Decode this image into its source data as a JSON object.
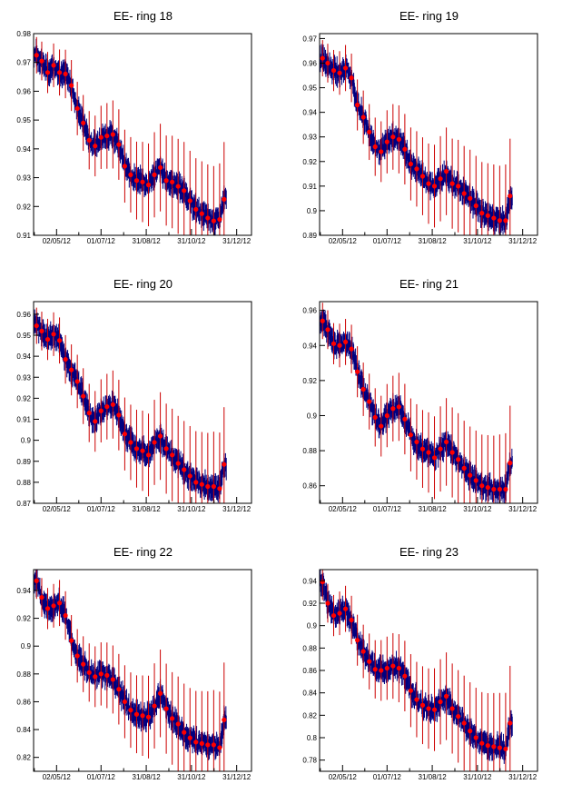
{
  "chart_data": [
    {
      "type": "scatter",
      "title": "EE- ring 18",
      "ylim": [
        0.91,
        0.98
      ],
      "yticks": [
        "0.91",
        "0.92",
        "0.93",
        "0.94",
        "0.95",
        "0.96",
        "0.97",
        "0.98"
      ],
      "xticks": [
        "02/05/12",
        "01/07/12",
        "31/08/12",
        "31/10/12",
        "31/12/12"
      ],
      "xlabel": "",
      "ylabel": "",
      "series": [
        {
          "x": [
            "2012-04-05",
            "2012-04-12",
            "2012-04-20",
            "2012-04-28",
            "2012-05-06",
            "2012-05-14",
            "2012-05-22",
            "2012-05-30",
            "2012-06-07",
            "2012-06-15",
            "2012-06-23",
            "2012-07-01",
            "2012-07-09",
            "2012-07-17",
            "2012-07-25",
            "2012-08-02",
            "2012-08-10",
            "2012-08-18",
            "2012-08-26",
            "2012-09-03",
            "2012-09-11",
            "2012-09-19",
            "2012-09-27",
            "2012-10-05",
            "2012-10-13",
            "2012-10-21",
            "2012-10-29",
            "2012-11-06",
            "2012-11-14",
            "2012-11-22",
            "2012-11-30",
            "2012-12-08",
            "2012-12-14"
          ],
          "y": [
            0.9725,
            0.9705,
            0.9665,
            0.969,
            0.9665,
            0.966,
            0.962,
            0.954,
            0.949,
            0.943,
            0.941,
            0.944,
            0.9445,
            0.945,
            0.9415,
            0.934,
            0.931,
            0.929,
            0.9285,
            0.9275,
            0.931,
            0.9335,
            0.929,
            0.9285,
            0.927,
            0.9255,
            0.922,
            0.919,
            0.9175,
            0.916,
            0.915,
            0.9155,
            0.9225
          ]
        }
      ]
    },
    {
      "type": "scatter",
      "title": "EE- ring 19",
      "ylim": [
        0.89,
        0.972
      ],
      "yticks": [
        "0.89",
        "0.9",
        "0.91",
        "0.92",
        "0.93",
        "0.94",
        "0.95",
        "0.96",
        "0.97"
      ],
      "xticks": [
        "02/05/12",
        "01/07/12",
        "31/08/12",
        "31/10/12",
        "31/12/12"
      ],
      "xlabel": "",
      "ylabel": "",
      "series": [
        {
          "x": [
            "2012-04-05",
            "2012-04-12",
            "2012-04-20",
            "2012-04-28",
            "2012-05-06",
            "2012-05-14",
            "2012-05-22",
            "2012-05-30",
            "2012-06-07",
            "2012-06-15",
            "2012-06-23",
            "2012-07-01",
            "2012-07-09",
            "2012-07-17",
            "2012-07-25",
            "2012-08-02",
            "2012-08-10",
            "2012-08-18",
            "2012-08-26",
            "2012-09-03",
            "2012-09-11",
            "2012-09-19",
            "2012-09-27",
            "2012-10-05",
            "2012-10-13",
            "2012-10-21",
            "2012-10-29",
            "2012-11-06",
            "2012-11-14",
            "2012-11-22",
            "2012-11-30",
            "2012-12-08",
            "2012-12-14"
          ],
          "y": [
            0.962,
            0.96,
            0.957,
            0.956,
            0.958,
            0.954,
            0.943,
            0.938,
            0.932,
            0.926,
            0.924,
            0.928,
            0.93,
            0.929,
            0.925,
            0.919,
            0.917,
            0.914,
            0.911,
            0.91,
            0.913,
            0.916,
            0.911,
            0.91,
            0.907,
            0.905,
            0.902,
            0.899,
            0.898,
            0.897,
            0.896,
            0.896,
            0.906
          ]
        }
      ]
    },
    {
      "type": "scatter",
      "title": "EE- ring 20",
      "ylim": [
        0.87,
        0.966
      ],
      "yticks": [
        "0.87",
        "0.88",
        "0.89",
        "0.9",
        "0.91",
        "0.92",
        "0.93",
        "0.94",
        "0.95",
        "0.96"
      ],
      "xticks": [
        "02/05/12",
        "01/07/12",
        "31/08/12",
        "31/10/12",
        "31/12/12"
      ],
      "xlabel": "",
      "ylabel": "",
      "series": [
        {
          "x": [
            "2012-04-05",
            "2012-04-12",
            "2012-04-20",
            "2012-04-28",
            "2012-05-06",
            "2012-05-14",
            "2012-05-22",
            "2012-05-30",
            "2012-06-07",
            "2012-06-15",
            "2012-06-23",
            "2012-07-01",
            "2012-07-09",
            "2012-07-17",
            "2012-07-25",
            "2012-08-02",
            "2012-08-10",
            "2012-08-18",
            "2012-08-26",
            "2012-09-03",
            "2012-09-11",
            "2012-09-19",
            "2012-09-27",
            "2012-10-05",
            "2012-10-13",
            "2012-10-21",
            "2012-10-29",
            "2012-11-06",
            "2012-11-14",
            "2012-11-22",
            "2012-11-30",
            "2012-12-08",
            "2012-12-14"
          ],
          "y": [
            0.9545,
            0.952,
            0.948,
            0.9505,
            0.9475,
            0.9385,
            0.9335,
            0.928,
            0.921,
            0.913,
            0.909,
            0.914,
            0.916,
            0.917,
            0.912,
            0.903,
            0.899,
            0.896,
            0.895,
            0.893,
            0.899,
            0.902,
            0.896,
            0.893,
            0.889,
            0.886,
            0.883,
            0.88,
            0.879,
            0.878,
            0.878,
            0.877,
            0.8885
          ]
        }
      ]
    },
    {
      "type": "scatter",
      "title": "EE- ring 21",
      "ylim": [
        0.85,
        0.965
      ],
      "yticks": [
        "0.86",
        "0.88",
        "0.9",
        "0.92",
        "0.94",
        "0.96"
      ],
      "xticks": [
        "02/05/12",
        "01/07/12",
        "31/08/12",
        "31/10/12",
        "31/12/12"
      ],
      "xlabel": "",
      "ylabel": "",
      "series": [
        {
          "x": [
            "2012-04-05",
            "2012-04-12",
            "2012-04-20",
            "2012-04-28",
            "2012-05-06",
            "2012-05-14",
            "2012-05-22",
            "2012-05-30",
            "2012-06-07",
            "2012-06-15",
            "2012-06-23",
            "2012-07-01",
            "2012-07-09",
            "2012-07-17",
            "2012-07-25",
            "2012-08-02",
            "2012-08-10",
            "2012-08-18",
            "2012-08-26",
            "2012-09-03",
            "2012-09-11",
            "2012-09-19",
            "2012-09-27",
            "2012-10-05",
            "2012-10-13",
            "2012-10-21",
            "2012-10-29",
            "2012-11-06",
            "2012-11-14",
            "2012-11-22",
            "2012-11-30",
            "2012-12-08",
            "2012-12-14"
          ],
          "y": [
            0.954,
            0.949,
            0.941,
            0.94,
            0.942,
            0.938,
            0.925,
            0.915,
            0.908,
            0.899,
            0.894,
            0.9,
            0.904,
            0.905,
            0.898,
            0.889,
            0.885,
            0.881,
            0.879,
            0.876,
            0.881,
            0.885,
            0.879,
            0.875,
            0.87,
            0.866,
            0.863,
            0.86,
            0.859,
            0.858,
            0.858,
            0.858,
            0.873
          ]
        }
      ]
    },
    {
      "type": "scatter",
      "title": "EE- ring 22",
      "ylim": [
        0.81,
        0.955
      ],
      "yticks": [
        "0.82",
        "0.84",
        "0.86",
        "0.88",
        "0.9",
        "0.92",
        "0.94"
      ],
      "xticks": [
        "02/05/12",
        "01/07/12",
        "31/08/12",
        "31/10/12",
        "31/12/12"
      ],
      "xlabel": "",
      "ylabel": "",
      "series": [
        {
          "x": [
            "2012-04-05",
            "2012-04-12",
            "2012-04-20",
            "2012-04-28",
            "2012-05-06",
            "2012-05-14",
            "2012-05-22",
            "2012-05-30",
            "2012-06-07",
            "2012-06-15",
            "2012-06-23",
            "2012-07-01",
            "2012-07-09",
            "2012-07-17",
            "2012-07-25",
            "2012-08-02",
            "2012-08-10",
            "2012-08-18",
            "2012-08-26",
            "2012-09-03",
            "2012-09-11",
            "2012-09-19",
            "2012-09-27",
            "2012-10-05",
            "2012-10-13",
            "2012-10-21",
            "2012-10-29",
            "2012-11-06",
            "2012-11-14",
            "2012-11-22",
            "2012-11-30",
            "2012-12-08",
            "2012-12-14"
          ],
          "y": [
            0.947,
            0.935,
            0.927,
            0.929,
            0.931,
            0.922,
            0.904,
            0.893,
            0.887,
            0.881,
            0.878,
            0.88,
            0.879,
            0.876,
            0.869,
            0.86,
            0.854,
            0.851,
            0.85,
            0.849,
            0.857,
            0.866,
            0.855,
            0.848,
            0.844,
            0.838,
            0.834,
            0.831,
            0.83,
            0.829,
            0.829,
            0.827,
            0.847
          ]
        }
      ]
    },
    {
      "type": "scatter",
      "title": "EE- ring 23",
      "ylim": [
        0.77,
        0.95
      ],
      "yticks": [
        "0.78",
        "0.8",
        "0.82",
        "0.84",
        "0.86",
        "0.88",
        "0.9",
        "0.92",
        "0.94"
      ],
      "xticks": [
        "02/05/12",
        "01/07/12",
        "31/08/12",
        "31/10/12",
        "31/12/12"
      ],
      "xlabel": "",
      "ylabel": "",
      "series": [
        {
          "x": [
            "2012-04-05",
            "2012-04-12",
            "2012-04-20",
            "2012-04-28",
            "2012-05-06",
            "2012-05-14",
            "2012-05-22",
            "2012-05-30",
            "2012-06-07",
            "2012-06-15",
            "2012-06-23",
            "2012-07-01",
            "2012-07-09",
            "2012-07-17",
            "2012-07-25",
            "2012-08-02",
            "2012-08-10",
            "2012-08-18",
            "2012-08-26",
            "2012-09-03",
            "2012-09-11",
            "2012-09-19",
            "2012-09-27",
            "2012-10-05",
            "2012-10-13",
            "2012-10-21",
            "2012-10-29",
            "2012-11-06",
            "2012-11-14",
            "2012-11-22",
            "2012-11-30",
            "2012-12-08",
            "2012-12-14"
          ],
          "y": [
            0.939,
            0.92,
            0.909,
            0.911,
            0.915,
            0.905,
            0.887,
            0.877,
            0.868,
            0.861,
            0.86,
            0.862,
            0.864,
            0.862,
            0.855,
            0.842,
            0.834,
            0.829,
            0.826,
            0.825,
            0.832,
            0.837,
            0.826,
            0.819,
            0.813,
            0.806,
            0.8,
            0.795,
            0.793,
            0.792,
            0.791,
            0.79,
            0.813
          ]
        }
      ]
    }
  ],
  "colors": {
    "points": "#ff0000",
    "errorbars": "#cc0000",
    "band": "#000080",
    "axes": "#000000"
  }
}
